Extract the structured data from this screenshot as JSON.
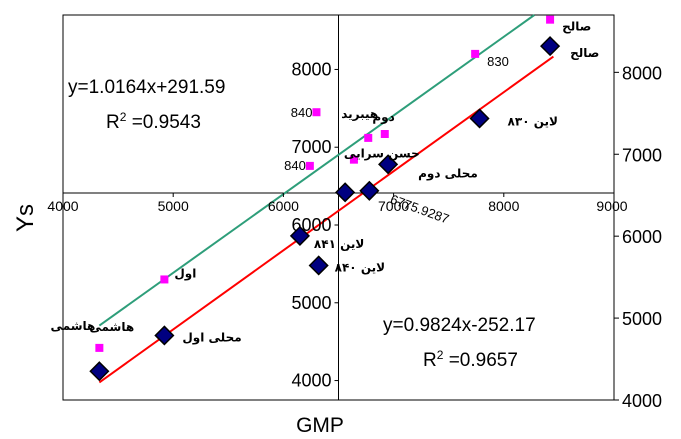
{
  "chart_data": {
    "type": "scatter",
    "xlabel": "GMP",
    "ylabel": "Ys",
    "xlim": [
      4000,
      9000
    ],
    "ylim_left": [
      3750,
      8700
    ],
    "ylim_right": [
      4000,
      8700
    ],
    "x_ticks": [
      "4000",
      "5000",
      "6000",
      "7000",
      "8000",
      "9000"
    ],
    "y_ticks_left": [
      "4000",
      "5000",
      "6000",
      "7000",
      "8000"
    ],
    "y_ticks_right": [
      "4000",
      "5000",
      "6000",
      "7000",
      "8000"
    ],
    "series": [
      {
        "marker": "square",
        "color": "#ff00ff",
        "points": [
          {
            "x": 4330,
            "y": 4420,
            "label": "هاشمی"
          },
          {
            "x": 4920,
            "y": 5300,
            "label": "اول"
          },
          {
            "x": 6240,
            "y": 6760,
            "label": "840"
          },
          {
            "x": 6300,
            "y": 7450,
            "label": "840"
          },
          {
            "x": 6640,
            "y": 6840,
            "label": "حسن سرایی"
          },
          {
            "x": 6770,
            "y": 7120,
            "label": "هیبرید"
          },
          {
            "x": 6920,
            "y": 7170,
            "label": "دوم"
          },
          {
            "x": 7740,
            "y": 8200,
            "label": "830"
          },
          {
            "x": 8420,
            "y": 8640,
            "label": "صالح"
          }
        ],
        "equation": "y=1.0164x+291.59",
        "r2": "=0.9543",
        "trend_color": "#2e9e7a"
      },
      {
        "marker": "diamond",
        "color": "#000080",
        "points": [
          {
            "x": 4330,
            "y": 4120,
            "label": "هاشمی"
          },
          {
            "x": 4920,
            "y": 4580,
            "label": "محلی اول"
          },
          {
            "x": 6150,
            "y": 5860,
            "label": "لاین ۸۴۱"
          },
          {
            "x": 6320,
            "y": 5480,
            "label": "لاین ۸۴۰"
          },
          {
            "x": 6560,
            "y": 6420,
            "label": ""
          },
          {
            "x": 6780,
            "y": 6440,
            "label": "6775.9287"
          },
          {
            "x": 6950,
            "y": 6780,
            "label": "محلی دوم"
          },
          {
            "x": 7780,
            "y": 7370,
            "label": "لاین ۸۳۰"
          },
          {
            "x": 8420,
            "y": 8300,
            "label": "صالح"
          }
        ],
        "equation": "y=0.9824x-252.17",
        "r2": "=0.9657",
        "trend_color": "#ff0000"
      }
    ]
  }
}
